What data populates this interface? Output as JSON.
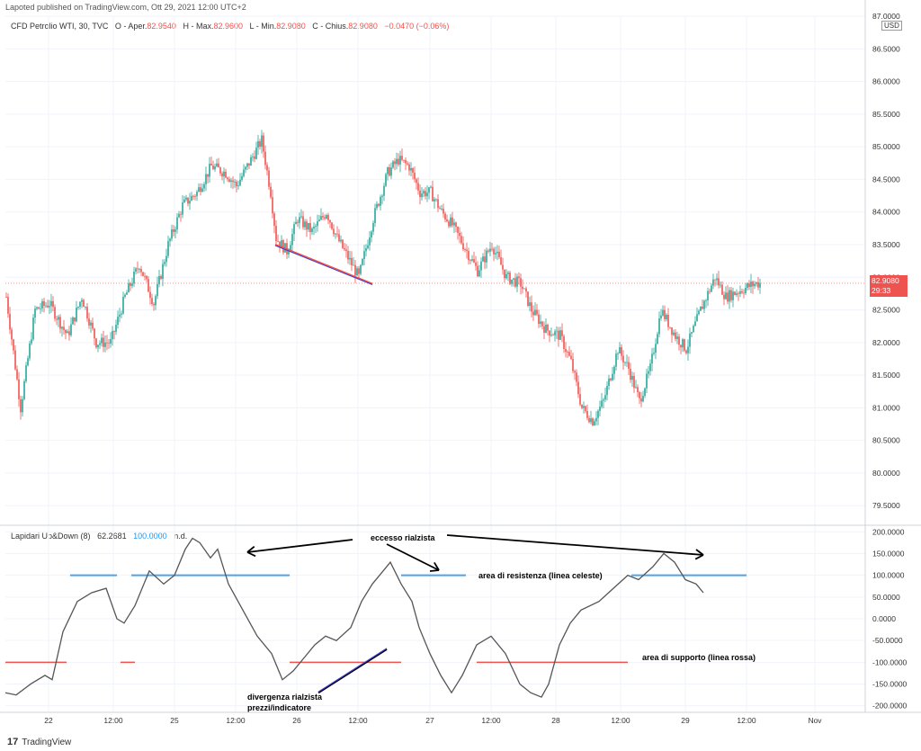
{
  "header": {
    "published": "Lapoted published on TradingView.com, Ott 29, 2021 12:00 UTC+2"
  },
  "legend": {
    "symbol": "CFD Petrolio WTI, 30, TVC",
    "o_label": "O - Aper.",
    "o_value": "82.9540",
    "h_label": "H - Max.",
    "h_value": "82.9600",
    "l_label": "L - Min.",
    "l_value": "82.9080",
    "c_label": "C - Chius.",
    "c_value": "82.9080",
    "change": "−0.0470 (−0.06%)"
  },
  "indicator_legend": {
    "name": "Lapidari Up&Down (8)",
    "value1": "62.2681",
    "value2": "100.0000",
    "value3": "n.d."
  },
  "price_axis": {
    "currency": "USD",
    "ticks": [
      "87.0000",
      "86.5000",
      "86.0000",
      "85.5000",
      "85.0000",
      "84.5000",
      "84.0000",
      "83.5000",
      "83.0000",
      "82.5000",
      "82.0000",
      "81.5000",
      "81.0000",
      "80.5000",
      "80.0000",
      "79.5000"
    ],
    "last_price": "82.9080",
    "countdown": "29:33"
  },
  "indicator_axis": {
    "ticks": [
      "200.0000",
      "150.0000",
      "100.0000",
      "50.0000",
      "0.0000",
      "-50.0000",
      "-100.0000",
      "-150.0000",
      "-200.0000"
    ]
  },
  "time_axis": {
    "labels": [
      "22",
      "12:00",
      "25",
      "12:00",
      "26",
      "12:00",
      "27",
      "12:00",
      "28",
      "12:00",
      "29",
      "12:00",
      "Nov"
    ]
  },
  "annotations": {
    "eccesso": "eccesso rialzista",
    "resistenza": "area di resistenza (linea celeste)",
    "supporto": "area di supporto (linea rossa)",
    "divergenza1": "divergenza rialzista",
    "divergenza2": "prezzi/indicatore"
  },
  "footer": {
    "logo": "17",
    "brand": "TradingView"
  },
  "colors": {
    "up": "#26a69a",
    "down": "#ef5350",
    "indicator": "#555555",
    "resistance": "#4fa3e6",
    "support": "#ef5350",
    "divergence": "#3f3fd0"
  },
  "chart_data": [
    {
      "type": "candlestick",
      "title": "CFD Petrolio WTI, 30, TVC",
      "ylim": [
        79.2,
        87.0
      ],
      "close_path": [
        [
          0,
          82.7
        ],
        [
          8,
          81.0
        ],
        [
          16,
          82.5
        ],
        [
          24,
          82.6
        ],
        [
          34,
          82.1
        ],
        [
          42,
          82.7
        ],
        [
          50,
          82.0
        ],
        [
          58,
          82.0
        ],
        [
          66,
          82.7
        ],
        [
          74,
          83.2
        ],
        [
          82,
          82.6
        ],
        [
          90,
          83.5
        ],
        [
          98,
          84.1
        ],
        [
          106,
          84.3
        ],
        [
          114,
          84.7
        ],
        [
          122,
          84.6
        ],
        [
          128,
          84.4
        ],
        [
          134,
          84.7
        ],
        [
          142,
          85.1
        ],
        [
          147,
          84.3
        ],
        [
          150,
          83.6
        ],
        [
          156,
          83.4
        ],
        [
          162,
          83.9
        ],
        [
          170,
          83.7
        ],
        [
          178,
          84.0
        ],
        [
          184,
          83.6
        ],
        [
          190,
          83.3
        ],
        [
          196,
          83.0
        ],
        [
          204,
          83.9
        ],
        [
          212,
          84.6
        ],
        [
          218,
          84.8
        ],
        [
          224,
          84.7
        ],
        [
          230,
          84.3
        ],
        [
          236,
          84.3
        ],
        [
          242,
          84.0
        ],
        [
          248,
          83.8
        ],
        [
          254,
          83.5
        ],
        [
          262,
          83.1
        ],
        [
          270,
          83.5
        ],
        [
          278,
          83.0
        ],
        [
          286,
          82.9
        ],
        [
          292,
          82.5
        ],
        [
          300,
          82.2
        ],
        [
          308,
          82.1
        ],
        [
          314,
          81.7
        ],
        [
          320,
          81.0
        ],
        [
          326,
          80.8
        ],
        [
          332,
          81.1
        ],
        [
          340,
          81.9
        ],
        [
          346,
          81.6
        ],
        [
          352,
          81.1
        ],
        [
          358,
          81.6
        ],
        [
          364,
          82.5
        ],
        [
          372,
          82.1
        ],
        [
          378,
          81.9
        ],
        [
          386,
          82.5
        ],
        [
          394,
          83.0
        ],
        [
          400,
          82.7
        ],
        [
          408,
          82.8
        ],
        [
          416,
          82.9
        ],
        [
          420,
          82.91
        ]
      ]
    },
    {
      "type": "line",
      "title": "Lapidari Up&Down (8)",
      "ylim": [
        -215,
        215
      ],
      "resistance": 100,
      "support": -100,
      "series": [
        {
          "values": [
            [
              0,
              -170
            ],
            [
              6,
              -175
            ],
            [
              14,
              -150
            ],
            [
              22,
              -130
            ],
            [
              26,
              -140
            ],
            [
              32,
              -30
            ],
            [
              40,
              40
            ],
            [
              48,
              60
            ],
            [
              56,
              70
            ],
            [
              62,
              0
            ],
            [
              66,
              -10
            ],
            [
              72,
              30
            ],
            [
              80,
              110
            ],
            [
              88,
              80
            ],
            [
              94,
              100
            ],
            [
              100,
              160
            ],
            [
              104,
              185
            ],
            [
              108,
              175
            ],
            [
              114,
              140
            ],
            [
              118,
              160
            ],
            [
              124,
              80
            ],
            [
              132,
              20
            ],
            [
              140,
              -40
            ],
            [
              148,
              -80
            ],
            [
              154,
              -140
            ],
            [
              160,
              -120
            ],
            [
              166,
              -90
            ],
            [
              172,
              -60
            ],
            [
              178,
              -40
            ],
            [
              184,
              -50
            ],
            [
              192,
              -20
            ],
            [
              198,
              40
            ],
            [
              204,
              80
            ],
            [
              210,
              110
            ],
            [
              214,
              130
            ],
            [
              220,
              80
            ],
            [
              226,
              40
            ],
            [
              230,
              -20
            ],
            [
              236,
              -80
            ],
            [
              242,
              -130
            ],
            [
              248,
              -170
            ],
            [
              254,
              -130
            ],
            [
              262,
              -60
            ],
            [
              270,
              -40
            ],
            [
              278,
              -80
            ],
            [
              286,
              -150
            ],
            [
              292,
              -170
            ],
            [
              298,
              -180
            ],
            [
              302,
              -150
            ],
            [
              308,
              -60
            ],
            [
              314,
              -10
            ],
            [
              320,
              20
            ],
            [
              330,
              40
            ],
            [
              338,
              70
            ],
            [
              346,
              100
            ],
            [
              352,
              90
            ],
            [
              360,
              120
            ],
            [
              366,
              150
            ],
            [
              372,
              130
            ],
            [
              378,
              90
            ],
            [
              384,
              80
            ],
            [
              388,
              60
            ]
          ]
        }
      ]
    }
  ]
}
